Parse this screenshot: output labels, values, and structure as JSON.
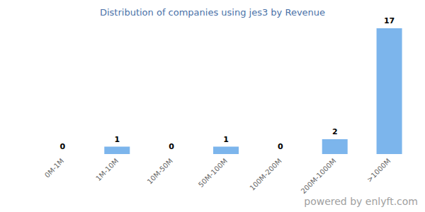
{
  "chart_data": {
    "type": "bar",
    "title": "Distribution of companies using jes3 by Revenue",
    "categories": [
      "0M-1M",
      "1M-10M",
      "10M-50M",
      "50M-100M",
      "100M-200M",
      "200M-1000M",
      ">1000M"
    ],
    "values": [
      0,
      1,
      0,
      1,
      0,
      2,
      17
    ],
    "color": "#7cb5ec",
    "data_labels": true,
    "tick_labels": "x",
    "grid": false,
    "annotation": "powered by enlyft.com"
  }
}
